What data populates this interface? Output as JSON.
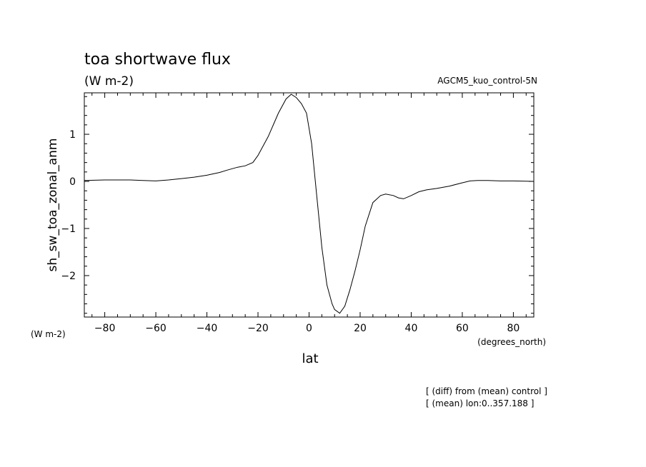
{
  "chart_data": {
    "type": "line",
    "title": "toa shortwave flux",
    "subtitle": "(W m-2)",
    "run_label": "AGCM5_kuo_control-5N",
    "ylabel": "sh_sw_toa_zonal_anm",
    "y_unit": "(W m-2)",
    "xlabel": "lat",
    "x_unit": "(degrees_north)",
    "xlim": [
      -88,
      88
    ],
    "ylim": [
      -2.88,
      1.88
    ],
    "x_ticks": [
      -80,
      -60,
      -40,
      -20,
      0,
      20,
      40,
      60,
      80
    ],
    "y_ticks": [
      -2,
      -1,
      0,
      1
    ],
    "grid": false,
    "series": [
      {
        "x": [
          -88,
          -80,
          -70,
          -65,
          -60,
          -55,
          -50,
          -45,
          -40,
          -35,
          -32,
          -28,
          -25,
          -22,
          -20,
          -16,
          -12,
          -9,
          -7,
          -5,
          -3,
          -1,
          1,
          3,
          5,
          7,
          9,
          10,
          12,
          14,
          16,
          18,
          20,
          22,
          25,
          28,
          30,
          33,
          35,
          37,
          40,
          43,
          46,
          50,
          55,
          60,
          63,
          66,
          70,
          75,
          80,
          88
        ],
        "y": [
          0.02,
          0.03,
          0.03,
          0.02,
          0.01,
          0.03,
          0.06,
          0.09,
          0.13,
          0.19,
          0.24,
          0.3,
          0.33,
          0.4,
          0.55,
          0.95,
          1.45,
          1.75,
          1.85,
          1.78,
          1.65,
          1.45,
          0.8,
          -0.3,
          -1.4,
          -2.2,
          -2.6,
          -2.72,
          -2.8,
          -2.65,
          -2.3,
          -1.9,
          -1.45,
          -0.95,
          -0.45,
          -0.3,
          -0.27,
          -0.3,
          -0.35,
          -0.37,
          -0.3,
          -0.22,
          -0.18,
          -0.15,
          -0.1,
          -0.03,
          0.01,
          0.02,
          0.02,
          0.01,
          0.01,
          0.0
        ]
      }
    ]
  },
  "notes": [
    "[ (diff) from (mean) control ]",
    "[ (mean) lon:0..357.188 ]"
  ]
}
